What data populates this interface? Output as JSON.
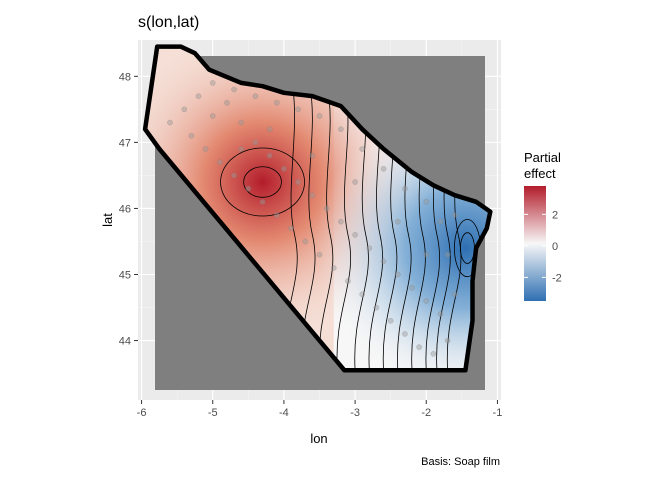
{
  "chart_data": {
    "type": "heatmap",
    "title": "s(lon,lat)",
    "xlabel": "lon",
    "ylabel": "lat",
    "caption": "Basis: Soap film",
    "xlim": [
      -6.05,
      -0.95
    ],
    "ylim": [
      43.1,
      48.55
    ],
    "x_ticks": [
      -6,
      -5,
      -4,
      -3,
      -2,
      -1
    ],
    "y_ticks": [
      44,
      45,
      46,
      47,
      48
    ],
    "grid": true,
    "legend": {
      "title_lines": [
        "Partial",
        "effect"
      ],
      "position": "right",
      "limits": [
        -3.5,
        3.8
      ],
      "ticks": [
        2,
        0,
        -2
      ],
      "tick_labels": [
        "2",
        "0",
        "-2"
      ],
      "colors": {
        "low": "#2e6fb2",
        "mid": "#f7f7f7",
        "high": "#b31c2b"
      }
    },
    "boundary": [
      [
        -5.78,
        48.45
      ],
      [
        -5.45,
        48.45
      ],
      [
        -5.25,
        48.35
      ],
      [
        -5.05,
        48.1
      ],
      [
        -4.6,
        47.9
      ],
      [
        -4.3,
        47.85
      ],
      [
        -4.0,
        47.75
      ],
      [
        -3.6,
        47.7
      ],
      [
        -3.2,
        47.55
      ],
      [
        -2.9,
        47.2
      ],
      [
        -2.6,
        46.9
      ],
      [
        -2.2,
        46.55
      ],
      [
        -1.9,
        46.35
      ],
      [
        -1.6,
        46.2
      ],
      [
        -1.3,
        46.1
      ],
      [
        -1.1,
        45.95
      ],
      [
        -1.15,
        45.7
      ],
      [
        -1.3,
        45.4
      ],
      [
        -1.35,
        44.9
      ],
      [
        -1.35,
        44.3
      ],
      [
        -1.45,
        43.55
      ],
      [
        -3.15,
        43.55
      ],
      [
        -5.75,
        46.9
      ],
      [
        -5.95,
        47.2
      ]
    ],
    "peak_high": {
      "x": -4.3,
      "y": 46.4,
      "value": 3.5
    },
    "peak_low": {
      "x": -1.45,
      "y": 45.4,
      "value": -3.3
    },
    "points": [
      [
        -5.6,
        47.3
      ],
      [
        -5.4,
        47.5
      ],
      [
        -5.2,
        47.7
      ],
      [
        -5.0,
        47.9
      ],
      [
        -4.8,
        47.6
      ],
      [
        -4.6,
        47.3
      ],
      [
        -4.4,
        47.0
      ],
      [
        -4.2,
        46.8
      ],
      [
        -4.0,
        46.6
      ],
      [
        -3.8,
        46.4
      ],
      [
        -3.6,
        46.2
      ],
      [
        -3.4,
        46.0
      ],
      [
        -3.2,
        45.8
      ],
      [
        -3.0,
        45.6
      ],
      [
        -2.8,
        45.4
      ],
      [
        -2.6,
        45.2
      ],
      [
        -2.4,
        45.0
      ],
      [
        -2.2,
        44.8
      ],
      [
        -2.0,
        44.6
      ],
      [
        -1.8,
        44.4
      ],
      [
        -5.3,
        47.1
      ],
      [
        -5.1,
        46.9
      ],
      [
        -4.9,
        46.7
      ],
      [
        -4.7,
        46.5
      ],
      [
        -4.5,
        46.3
      ],
      [
        -4.3,
        46.1
      ],
      [
        -4.1,
        45.9
      ],
      [
        -3.9,
        45.7
      ],
      [
        -3.7,
        45.5
      ],
      [
        -3.5,
        45.3
      ],
      [
        -3.3,
        45.1
      ],
      [
        -3.1,
        44.9
      ],
      [
        -2.9,
        44.7
      ],
      [
        -2.7,
        44.5
      ],
      [
        -2.5,
        44.3
      ],
      [
        -2.3,
        44.1
      ],
      [
        -2.1,
        43.9
      ],
      [
        -1.9,
        43.8
      ],
      [
        -1.7,
        44.0
      ],
      [
        -1.6,
        44.7
      ],
      [
        -1.7,
        45.3
      ],
      [
        -1.8,
        45.8
      ],
      [
        -2.0,
        46.1
      ],
      [
        -2.3,
        46.3
      ],
      [
        -2.6,
        46.6
      ],
      [
        -2.9,
        46.9
      ],
      [
        -3.2,
        47.2
      ],
      [
        -3.5,
        47.4
      ],
      [
        -3.8,
        47.5
      ],
      [
        -4.1,
        47.6
      ],
      [
        -4.4,
        47.7
      ],
      [
        -4.7,
        47.8
      ],
      [
        -5.0,
        47.4
      ],
      [
        -4.6,
        46.9
      ],
      [
        -4.2,
        47.2
      ],
      [
        -3.6,
        46.8
      ],
      [
        -3.0,
        46.4
      ],
      [
        -2.4,
        45.8
      ],
      [
        -2.0,
        45.3
      ],
      [
        -1.6,
        45.9
      ]
    ]
  }
}
